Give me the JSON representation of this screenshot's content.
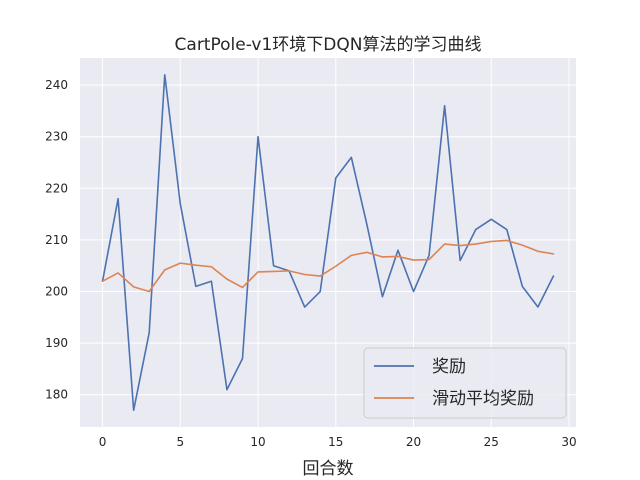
{
  "chart_data": {
    "type": "line",
    "title": "CartPole-v1环境下DQN算法的学习曲线",
    "xlabel": "回合数",
    "ylabel": "",
    "xlim": [
      -1.45,
      30.45
    ],
    "ylim": [
      173.75,
      245.25
    ],
    "xticks": [
      0,
      5,
      10,
      15,
      20,
      25,
      30
    ],
    "yticks": [
      180,
      190,
      200,
      210,
      220,
      230,
      240
    ],
    "grid": true,
    "legend_position": "lower-right",
    "x": [
      0,
      1,
      2,
      3,
      4,
      5,
      6,
      7,
      8,
      9,
      10,
      11,
      12,
      13,
      14,
      15,
      16,
      17,
      18,
      19,
      20,
      21,
      22,
      23,
      24,
      25,
      26,
      27,
      28,
      29
    ],
    "series": [
      {
        "name": "奖励",
        "color": "#4c72b0",
        "values": [
          202,
          218,
          177,
          192,
          242,
          217,
          201,
          202,
          181,
          187,
          230,
          205,
          204,
          197,
          200,
          222,
          226,
          213,
          199,
          208,
          200,
          207,
          236,
          206,
          212,
          214,
          212,
          201,
          197,
          203
        ]
      },
      {
        "name": "滑动平均奖励",
        "color": "#dd8452",
        "values": [
          202,
          203.6,
          200.9,
          200.0,
          204.2,
          205.5,
          205.1,
          204.8,
          202.4,
          200.8,
          203.8,
          203.9,
          204.0,
          203.3,
          203.0,
          204.9,
          207.0,
          207.6,
          206.7,
          206.8,
          206.1,
          206.2,
          209.2,
          208.9,
          209.2,
          209.7,
          209.9,
          209.0,
          207.8,
          207.3
        ]
      }
    ]
  }
}
